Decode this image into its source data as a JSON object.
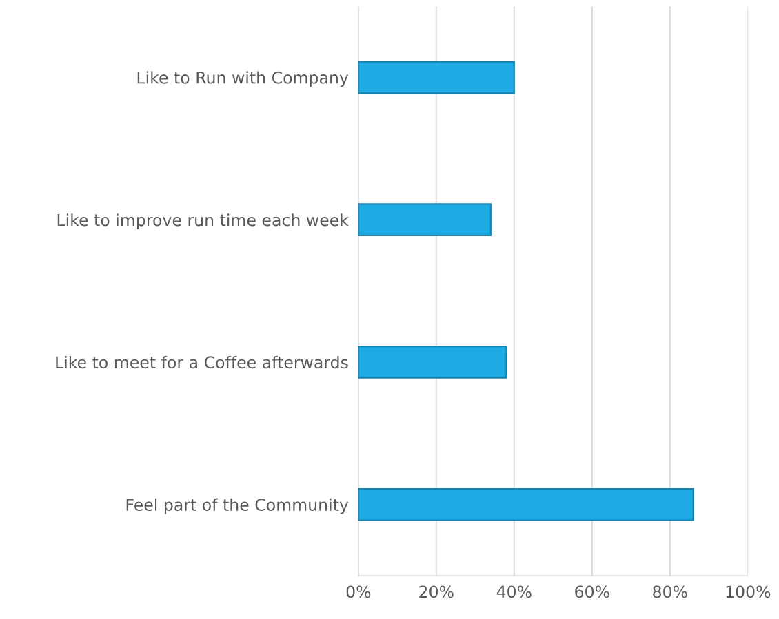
{
  "chart_data": {
    "type": "bar",
    "orientation": "horizontal",
    "categories": [
      "Like to Run with Company",
      "Like to improve run time each week",
      "Like to meet for a Coffee afterwards",
      "Feel part of the Community"
    ],
    "values": [
      40,
      34,
      38,
      86
    ],
    "color": "#1eaae2",
    "xlim": [
      0,
      100
    ],
    "xticks": [
      {
        "value": 0,
        "label": "0%"
      },
      {
        "value": 20,
        "label": "20%"
      },
      {
        "value": 40,
        "label": "40%"
      },
      {
        "value": 60,
        "label": "60%"
      },
      {
        "value": 80,
        "label": "80%"
      },
      {
        "value": 100,
        "label": "100%"
      }
    ],
    "grid": "x"
  }
}
